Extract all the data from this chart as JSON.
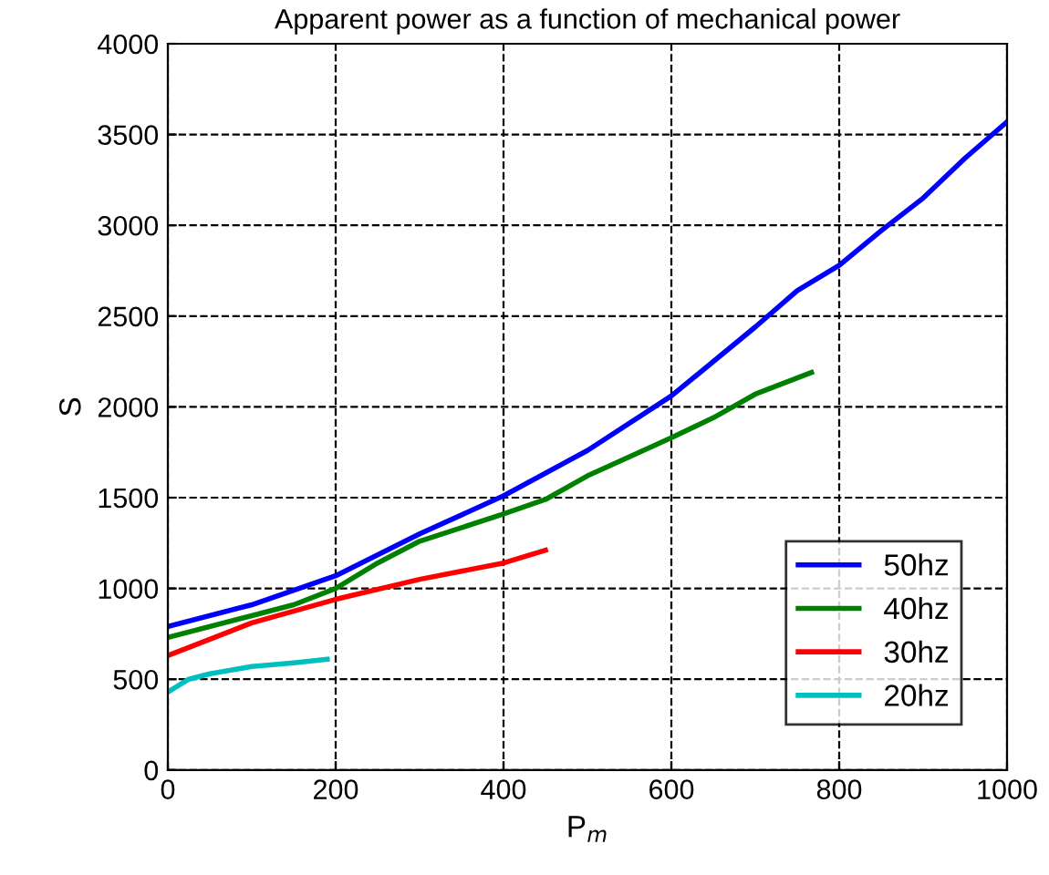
{
  "chart_data": {
    "type": "line",
    "title": "Apparent power as a function of mechanical power",
    "xlabel": "P$_{m}$",
    "ylabel": "S",
    "xlim": [
      0,
      1000
    ],
    "xticks": [
      0,
      200,
      400,
      600,
      800,
      1000
    ],
    "ylim": [
      0,
      4000
    ],
    "yticks": [
      0,
      500,
      1000,
      1500,
      2000,
      2500,
      3000,
      3500,
      4000
    ],
    "grid": true,
    "legend": "bottom right",
    "series": [
      {
        "name": "50hz",
        "color": "#0000ff",
        "x": [
          0,
          100,
          200,
          300,
          400,
          500,
          600,
          700,
          750,
          800,
          850,
          900,
          950,
          1000
        ],
        "values": [
          790,
          910,
          1070,
          1300,
          1510,
          1760,
          2060,
          2440,
          2640,
          2780,
          2970,
          3150,
          3370,
          3570
        ]
      },
      {
        "name": "40hz",
        "color": "#008000",
        "x": [
          0,
          100,
          150,
          200,
          250,
          300,
          400,
          450,
          500,
          600,
          650,
          700,
          767
        ],
        "values": [
          730,
          850,
          910,
          1000,
          1140,
          1260,
          1410,
          1490,
          1620,
          1830,
          1940,
          2070,
          2190
        ]
      },
      {
        "name": "30hz",
        "color": "#ff0000",
        "x": [
          0,
          50,
          100,
          200,
          300,
          400,
          450
        ],
        "values": [
          630,
          720,
          810,
          940,
          1050,
          1140,
          1210
        ]
      },
      {
        "name": "20hz",
        "color": "#00bfbf",
        "x": [
          0,
          25,
          50,
          100,
          150,
          190
        ],
        "values": [
          430,
          500,
          530,
          570,
          590,
          610
        ]
      }
    ]
  }
}
